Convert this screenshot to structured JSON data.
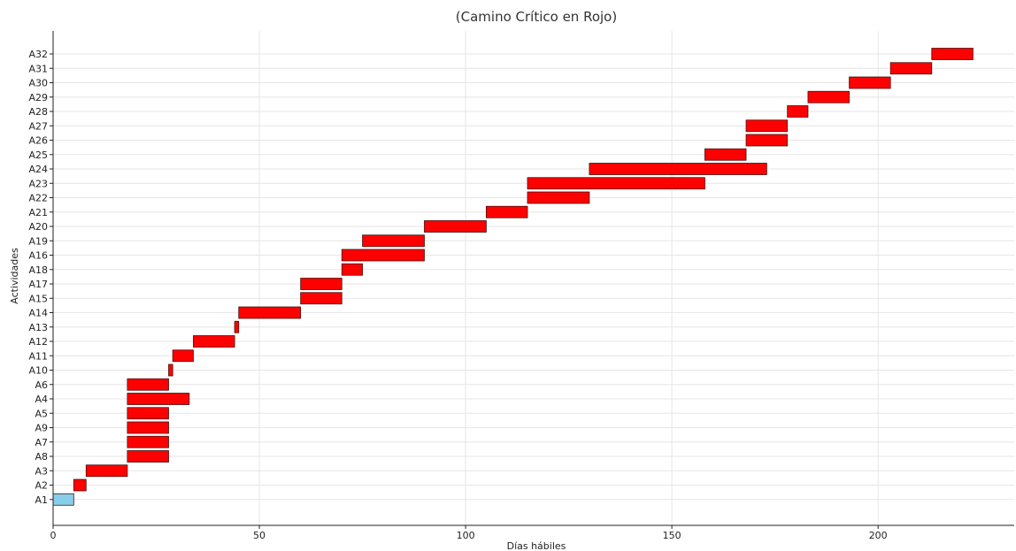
{
  "chart_data": {
    "type": "bar",
    "orientation": "horizontal-gantt",
    "title": "(Camino Crítico en Rojo)",
    "xlabel": "Días hábiles",
    "ylabel": "Actividades",
    "xlim": [
      0,
      233
    ],
    "xticks": [
      0,
      50,
      100,
      150,
      200
    ],
    "grid": true,
    "colors": {
      "critical": "#ff0000",
      "non_critical": "#87ceeb"
    },
    "tasks": [
      {
        "name": "A1",
        "start": 0,
        "end": 5,
        "critical": false
      },
      {
        "name": "A2",
        "start": 5,
        "end": 8,
        "critical": true
      },
      {
        "name": "A3",
        "start": 8,
        "end": 18,
        "critical": true
      },
      {
        "name": "A8",
        "start": 18,
        "end": 28,
        "critical": true
      },
      {
        "name": "A7",
        "start": 18,
        "end": 28,
        "critical": true
      },
      {
        "name": "A9",
        "start": 18,
        "end": 28,
        "critical": true
      },
      {
        "name": "A5",
        "start": 18,
        "end": 28,
        "critical": true
      },
      {
        "name": "A4",
        "start": 18,
        "end": 33,
        "critical": true
      },
      {
        "name": "A6",
        "start": 18,
        "end": 28,
        "critical": true
      },
      {
        "name": "A10",
        "start": 28,
        "end": 29,
        "critical": true
      },
      {
        "name": "A11",
        "start": 29,
        "end": 34,
        "critical": true
      },
      {
        "name": "A12",
        "start": 34,
        "end": 44,
        "critical": true
      },
      {
        "name": "A13",
        "start": 44,
        "end": 45,
        "critical": true
      },
      {
        "name": "A14",
        "start": 45,
        "end": 60,
        "critical": true
      },
      {
        "name": "A15",
        "start": 60,
        "end": 70,
        "critical": true
      },
      {
        "name": "A17",
        "start": 60,
        "end": 70,
        "critical": true
      },
      {
        "name": "A18",
        "start": 70,
        "end": 75,
        "critical": true
      },
      {
        "name": "A16",
        "start": 70,
        "end": 90,
        "critical": true
      },
      {
        "name": "A19",
        "start": 75,
        "end": 90,
        "critical": true
      },
      {
        "name": "A20",
        "start": 90,
        "end": 105,
        "critical": true
      },
      {
        "name": "A21",
        "start": 105,
        "end": 115,
        "critical": true
      },
      {
        "name": "A22",
        "start": 115,
        "end": 130,
        "critical": true
      },
      {
        "name": "A23",
        "start": 115,
        "end": 158,
        "critical": true
      },
      {
        "name": "A24",
        "start": 130,
        "end": 173,
        "critical": true
      },
      {
        "name": "A25",
        "start": 158,
        "end": 168,
        "critical": true
      },
      {
        "name": "A26",
        "start": 168,
        "end": 178,
        "critical": true
      },
      {
        "name": "A27",
        "start": 168,
        "end": 178,
        "critical": true
      },
      {
        "name": "A28",
        "start": 178,
        "end": 183,
        "critical": true
      },
      {
        "name": "A29",
        "start": 183,
        "end": 193,
        "critical": true
      },
      {
        "name": "A30",
        "start": 193,
        "end": 203,
        "critical": true
      },
      {
        "name": "A31",
        "start": 203,
        "end": 213,
        "critical": true
      },
      {
        "name": "A32",
        "start": 213,
        "end": 223,
        "critical": true
      }
    ]
  }
}
